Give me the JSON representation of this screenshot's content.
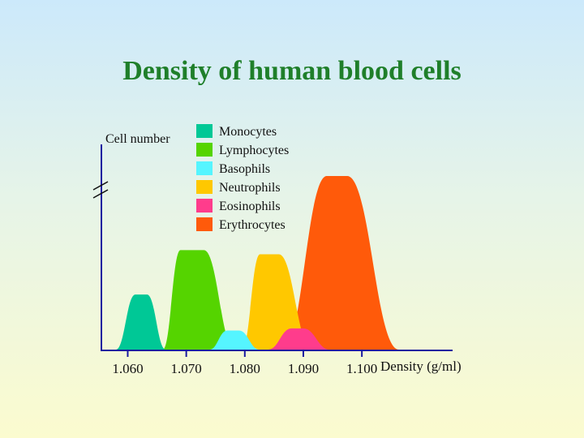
{
  "chart_data": {
    "type": "area",
    "title": "Density of human blood cells",
    "xlabel": "Density (g/ml)",
    "ylabel": "Cell number",
    "x_ticks": [
      "1.060",
      "1.070",
      "1.080",
      "1.090",
      "1.100"
    ],
    "x_tick_values": [
      1.06,
      1.07,
      1.08,
      1.09,
      1.1
    ],
    "xlim": [
      1.0555,
      1.1155
    ],
    "ylim": [
      0,
      1
    ],
    "y_axis_break": true,
    "grid": false,
    "legend_position": "top-center",
    "series": [
      {
        "name": "Erythrocytes",
        "color": "#ff5a0a",
        "start": 1.0865,
        "end": 1.1063,
        "plateau_start": 1.094,
        "plateau_end": 1.0975,
        "peak": 0.82,
        "peak_density": 1.0958
      },
      {
        "name": "Neutrophils",
        "color": "#ffc800",
        "start": 1.0795,
        "end": 1.0915,
        "plateau_start": 1.0826,
        "plateau_end": 1.0858,
        "peak": 0.45,
        "peak_density": 1.0842
      },
      {
        "name": "Lymphocytes",
        "color": "#55d400",
        "start": 1.066,
        "end": 1.0783,
        "plateau_start": 1.069,
        "plateau_end": 1.073,
        "peak": 0.47,
        "peak_density": 1.071
      },
      {
        "name": "Monocytes",
        "color": "#00c896",
        "start": 1.058,
        "end": 1.0665,
        "plateau_start": 1.0613,
        "plateau_end": 1.0633,
        "peak": 0.26,
        "peak_density": 1.0623
      },
      {
        "name": "Eosinophils",
        "color": "#ff3c8c",
        "start": 1.084,
        "end": 1.0945,
        "plateau_start": 1.088,
        "plateau_end": 1.09,
        "peak": 0.1,
        "peak_density": 1.089
      },
      {
        "name": "Basophils",
        "color": "#55f5ff",
        "start": 1.074,
        "end": 1.0825,
        "plateau_start": 1.077,
        "plateau_end": 1.079,
        "peak": 0.09,
        "peak_density": 1.078
      }
    ],
    "legend": [
      {
        "label": "Monocytes",
        "color": "#00c896"
      },
      {
        "label": "Lymphocytes",
        "color": "#55d400"
      },
      {
        "label": "Basophils",
        "color": "#55f5ff"
      },
      {
        "label": "Neutrophils",
        "color": "#ffc800"
      },
      {
        "label": "Eosinophils",
        "color": "#ff3c8c"
      },
      {
        "label": "Erythrocytes",
        "color": "#ff5a0a"
      }
    ]
  }
}
